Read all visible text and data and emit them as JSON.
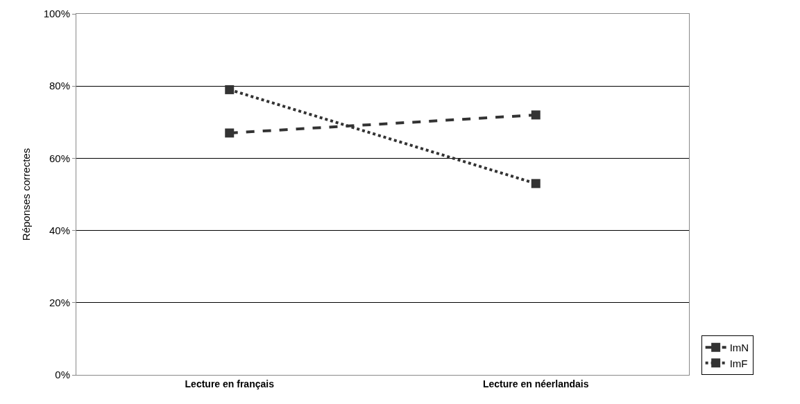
{
  "chart_data": {
    "type": "line",
    "ylabel": "Réponses correctes",
    "categories": [
      "Lecture en français",
      "Lecture en néerlandais"
    ],
    "series": [
      {
        "name": "ImN",
        "color": "#333333",
        "values": [
          67,
          72
        ],
        "line_style": "dashed"
      },
      {
        "name": "ImF",
        "color": "#333333",
        "values": [
          79,
          53
        ],
        "line_style": "dotted"
      }
    ],
    "ylim": [
      0,
      100
    ],
    "yticks": [
      {
        "value": 0,
        "label": "0%"
      },
      {
        "value": 20,
        "label": "20%"
      },
      {
        "value": 40,
        "label": "40%"
      },
      {
        "value": 60,
        "label": "60%"
      },
      {
        "value": 80,
        "label": "80%"
      },
      {
        "value": 100,
        "label": "100%"
      }
    ],
    "grid": "y",
    "legend": "bottom right",
    "marker": "square"
  }
}
